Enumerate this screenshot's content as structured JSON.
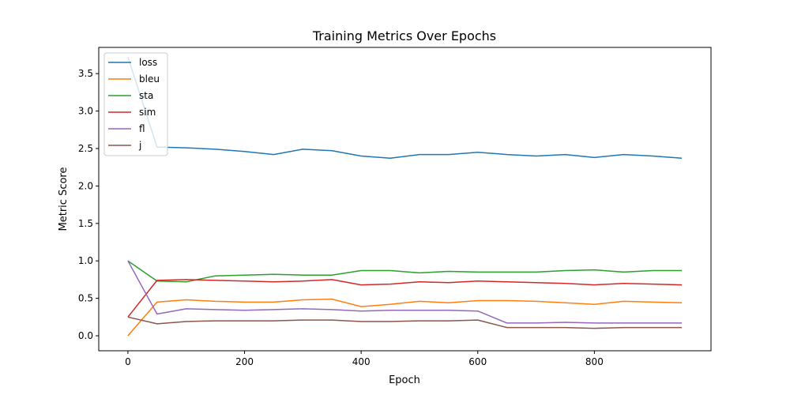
{
  "chart_data": {
    "type": "line",
    "title": "Training Metrics Over Epochs",
    "xlabel": "Epoch",
    "ylabel": "Metric Score",
    "xlim": [
      -50,
      1000
    ],
    "ylim": [
      -0.2,
      3.85
    ],
    "xticks": [
      0,
      200,
      400,
      600,
      800
    ],
    "xtick_labels": [
      "0",
      "200",
      "400",
      "600",
      "800"
    ],
    "yticks": [
      0.0,
      0.5,
      1.0,
      1.5,
      2.0,
      2.5,
      3.0,
      3.5
    ],
    "ytick_labels": [
      "0.0",
      "0.5",
      "1.0",
      "1.5",
      "2.0",
      "2.5",
      "3.0",
      "3.5"
    ],
    "grid": false,
    "legend_position": "top-left",
    "x": [
      0,
      50,
      100,
      150,
      200,
      250,
      300,
      350,
      400,
      450,
      500,
      550,
      600,
      650,
      700,
      750,
      800,
      850,
      900,
      950
    ],
    "series": [
      {
        "name": "loss",
        "color": "#1f77b4",
        "values": [
          3.72,
          2.52,
          2.51,
          2.49,
          2.46,
          2.42,
          2.49,
          2.47,
          2.4,
          2.37,
          2.42,
          2.42,
          2.45,
          2.42,
          2.4,
          2.42,
          2.38,
          2.42,
          2.4,
          2.37
        ]
      },
      {
        "name": "bleu",
        "color": "#ff7f0e",
        "values": [
          0.0,
          0.45,
          0.48,
          0.46,
          0.45,
          0.45,
          0.48,
          0.49,
          0.39,
          0.42,
          0.46,
          0.44,
          0.47,
          0.47,
          0.46,
          0.44,
          0.42,
          0.46,
          0.45,
          0.44
        ]
      },
      {
        "name": "sta",
        "color": "#2ca02c",
        "values": [
          1.0,
          0.73,
          0.72,
          0.8,
          0.81,
          0.82,
          0.81,
          0.81,
          0.87,
          0.87,
          0.84,
          0.86,
          0.85,
          0.85,
          0.85,
          0.87,
          0.88,
          0.85,
          0.87,
          0.87
        ]
      },
      {
        "name": "sim",
        "color": "#d62728",
        "values": [
          0.25,
          0.74,
          0.75,
          0.74,
          0.73,
          0.72,
          0.73,
          0.75,
          0.68,
          0.69,
          0.72,
          0.71,
          0.73,
          0.72,
          0.71,
          0.7,
          0.68,
          0.7,
          0.69,
          0.68
        ]
      },
      {
        "name": "fl",
        "color": "#9467bd",
        "values": [
          1.0,
          0.29,
          0.36,
          0.35,
          0.34,
          0.35,
          0.36,
          0.35,
          0.33,
          0.34,
          0.34,
          0.34,
          0.33,
          0.17,
          0.17,
          0.18,
          0.17,
          0.17,
          0.17,
          0.17
        ]
      },
      {
        "name": "j",
        "color": "#8c564b",
        "values": [
          0.25,
          0.16,
          0.19,
          0.2,
          0.2,
          0.2,
          0.21,
          0.21,
          0.19,
          0.19,
          0.2,
          0.2,
          0.21,
          0.11,
          0.11,
          0.11,
          0.1,
          0.11,
          0.11,
          0.11
        ]
      }
    ]
  }
}
